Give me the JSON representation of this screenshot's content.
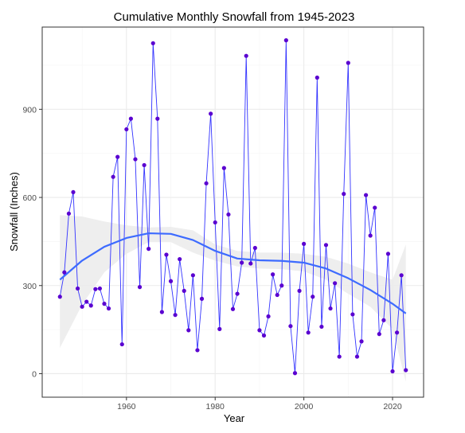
{
  "chart_data": {
    "type": "line",
    "title": "Cumulative Monthly Snowfall from 1945-2023",
    "xlabel": "Year",
    "ylabel": "Snowfall (Inches)",
    "xlim": [
      1941,
      2027
    ],
    "ylim": [
      -80,
      1180
    ],
    "x_ticks": [
      1960,
      1980,
      2000,
      2020
    ],
    "y_ticks": [
      0,
      300,
      600,
      900
    ],
    "grid": true,
    "colors": {
      "line": "#3333ff",
      "points": "#5a00d0",
      "smooth": "#3d6bff",
      "band": "#ebebeb",
      "panel_border": "#333333",
      "grid_major": "#ebebeb",
      "grid_minor": "#f5f5f5"
    },
    "series": [
      {
        "x": [
          1945,
          1946,
          1947,
          1948,
          1949,
          1950,
          1951,
          1952,
          1953,
          1954,
          1955,
          1956,
          1957,
          1958,
          1959,
          1960,
          1961,
          1962,
          1963,
          1964,
          1965,
          1966,
          1967,
          1968,
          1969,
          1970,
          1971,
          1972,
          1973,
          1974,
          1975,
          1976,
          1977,
          1978,
          1979,
          1980,
          1981,
          1982,
          1983,
          1984,
          1985,
          1986,
          1987,
          1988,
          1989,
          1990,
          1991,
          1992,
          1993,
          1994,
          1995,
          1996,
          1997,
          1998,
          1999,
          2000,
          2001,
          2002,
          2003,
          2004,
          2005,
          2006,
          2007,
          2008,
          2009,
          2010,
          2011,
          2012,
          2013,
          2014,
          2015,
          2016,
          2017,
          2018,
          2019,
          2020,
          2021,
          2022,
          2023
        ],
        "values": [
          262,
          345,
          545,
          618,
          290,
          228,
          245,
          232,
          288,
          290,
          238,
          222,
          670,
          738,
          100,
          832,
          868,
          730,
          295,
          710,
          425,
          1125,
          868,
          210,
          405,
          315,
          200,
          390,
          282,
          148,
          335,
          80,
          255,
          648,
          885,
          515,
          152,
          700,
          542,
          220,
          272,
          378,
          1082,
          375,
          428,
          148,
          130,
          195,
          338,
          268,
          300,
          1135,
          162,
          2,
          282,
          442,
          140,
          262,
          1008,
          160,
          438,
          222,
          308,
          58,
          612,
          1058,
          202,
          58,
          110,
          608,
          470,
          565,
          135,
          182,
          408,
          8,
          140,
          335,
          12
        ]
      }
    ],
    "trend": {
      "x": [
        1945,
        1950,
        1955,
        1960,
        1965,
        1970,
        1975,
        1980,
        1985,
        1990,
        1995,
        2000,
        2005,
        2010,
        2015,
        2020,
        2023
      ],
      "y": [
        320,
        385,
        432,
        462,
        478,
        476,
        455,
        418,
        392,
        386,
        384,
        378,
        358,
        325,
        285,
        238,
        205
      ],
      "band_upper": [
        540,
        535,
        518,
        505,
        498,
        500,
        488,
        440,
        418,
        412,
        412,
        408,
        398,
        375,
        345,
        320,
        440
      ],
      "band_lower": [
        88,
        235,
        345,
        408,
        448,
        448,
        412,
        385,
        365,
        358,
        356,
        348,
        320,
        272,
        228,
        152,
        -28
      ]
    }
  }
}
